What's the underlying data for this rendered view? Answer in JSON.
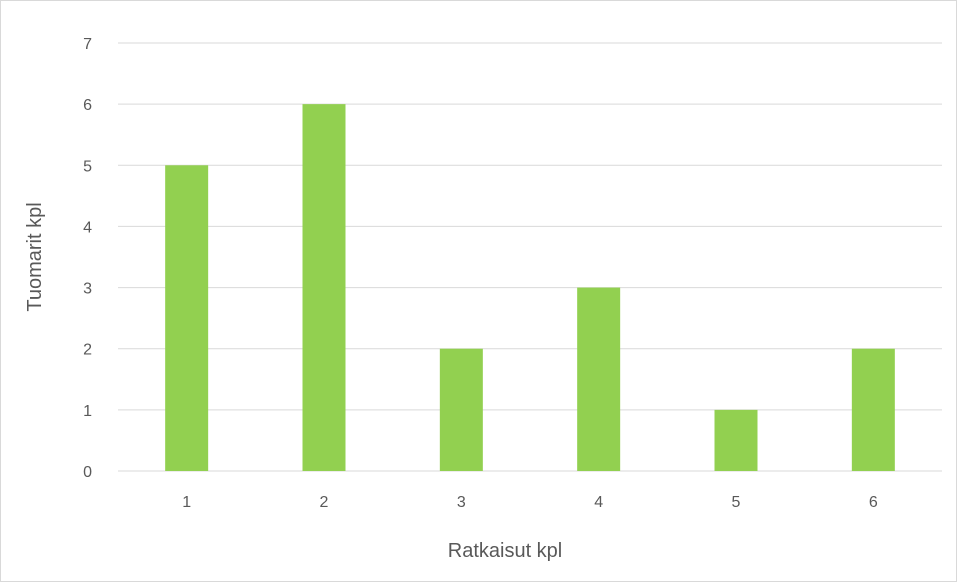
{
  "chart_data": {
    "type": "bar",
    "categories": [
      "1",
      "2",
      "3",
      "4",
      "5",
      "6"
    ],
    "values": [
      5,
      6,
      2,
      3,
      1,
      2
    ],
    "xlabel": "Ratkaisut kpl",
    "ylabel": "Tuomarit kpl",
    "ylim": [
      0,
      7
    ],
    "yticks": [
      0,
      1,
      2,
      3,
      4,
      5,
      6,
      7
    ],
    "grid": true,
    "legend": "none",
    "colors": {
      "bar": "#92d050",
      "grid": "#d9d9d9",
      "text": "#595959"
    }
  }
}
